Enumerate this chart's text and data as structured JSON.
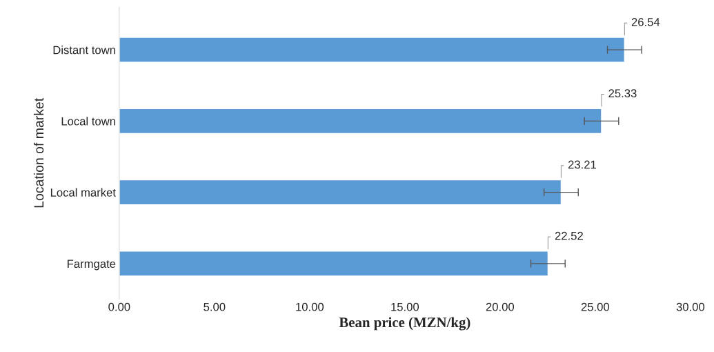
{
  "chart_data": {
    "type": "bar",
    "orientation": "horizontal",
    "xlabel": "Bean price (MZN/kg)",
    "ylabel": "Location of market",
    "categories": [
      "Distant town",
      "Local town",
      "Local market",
      "Farmgate"
    ],
    "values": [
      26.54,
      25.33,
      23.21,
      22.52
    ],
    "errors": [
      0.9,
      0.9,
      0.9,
      0.9
    ],
    "color": "#5b9bd5",
    "data_labels": true,
    "grid": false,
    "legend": false,
    "xlim": [
      0,
      30
    ],
    "xticks": [
      {
        "value": 0,
        "label": "0.00"
      },
      {
        "value": 5,
        "label": "5.00"
      },
      {
        "value": 10,
        "label": "10.00"
      },
      {
        "value": 15,
        "label": "15.00"
      },
      {
        "value": 20,
        "label": "20.00"
      },
      {
        "value": 25,
        "label": "25.00"
      },
      {
        "value": 30,
        "label": "30.00"
      }
    ]
  }
}
